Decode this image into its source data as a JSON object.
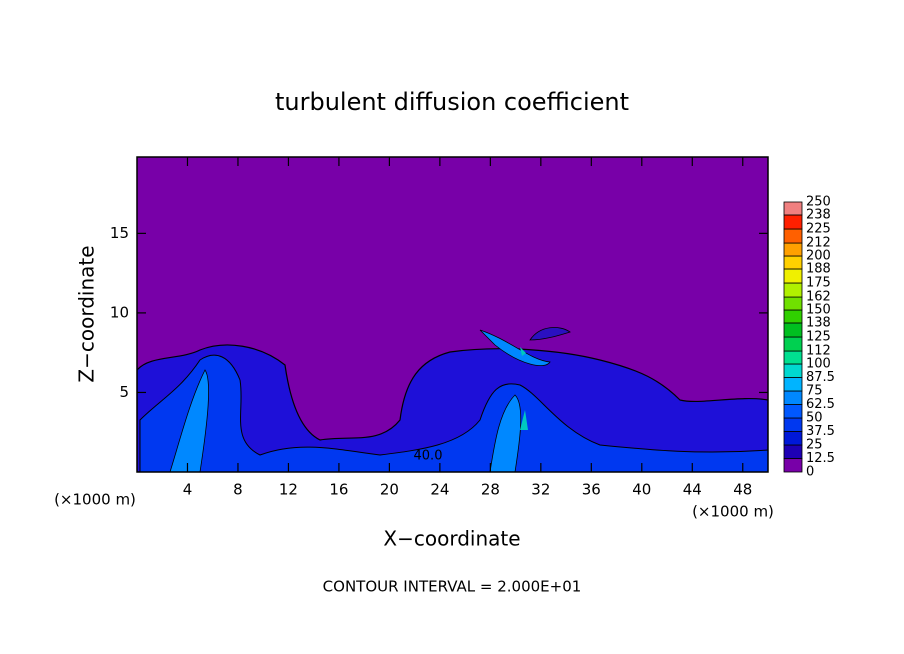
{
  "chart_data": {
    "type": "contour",
    "title": "turbulent diffusion coefficient",
    "xlabel": "X−coordinate",
    "ylabel": "Z−coordinate",
    "xunit_labels": [
      "(×1000 m)",
      "(×1000 m)"
    ],
    "footer": "CONTOUR INTERVAL = 2.000E+01",
    "contour_label": "40.0",
    "xlim": [
      0,
      50
    ],
    "ylim": [
      0,
      19.8
    ],
    "xticks": [
      4,
      8,
      12,
      16,
      20,
      24,
      28,
      32,
      36,
      40,
      44,
      48
    ],
    "yticks": [
      5,
      10,
      15
    ],
    "colorbar": {
      "levels": [
        0,
        12.5,
        25,
        37.5,
        50,
        62.5,
        75,
        87.5,
        100,
        112,
        125,
        138,
        150,
        162,
        175,
        188,
        200,
        212,
        225,
        238,
        250
      ],
      "colors": [
        "#7800a8",
        "#1e00b4",
        "#0018d8",
        "#0038f0",
        "#0058ff",
        "#0088ff",
        "#00b4ff",
        "#00d8d0",
        "#00e090",
        "#00d050",
        "#00c020",
        "#30d000",
        "#70e000",
        "#b0f000",
        "#f0f000",
        "#ffd000",
        "#ffa000",
        "#ff6000",
        "#ff2000",
        "#f08080"
      ]
    }
  }
}
